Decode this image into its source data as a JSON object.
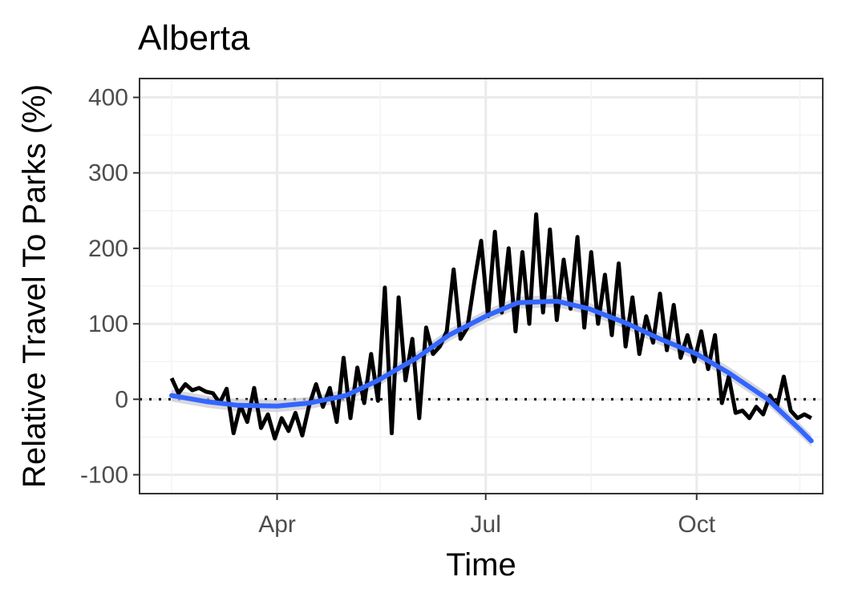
{
  "chart_data": {
    "type": "line",
    "title": "Alberta",
    "xlabel": "Time",
    "ylabel": "Relative Travel To Parks (%)",
    "x_ticks": [
      "Apr",
      "Jul",
      "Oct"
    ],
    "y_ticks": [
      "400",
      "300",
      "200",
      "100",
      "0",
      "-100"
    ],
    "ylim": [
      -125,
      425
    ],
    "xlim": [
      "2020-02-01",
      "2020-11-25"
    ],
    "grid": true,
    "reference_line": {
      "y": 0,
      "style": "dotted"
    },
    "series": [
      {
        "style": "raw-daily",
        "color": "#000000",
        "x": [
          "2020-02-15",
          "2020-02-18",
          "2020-02-21",
          "2020-02-24",
          "2020-02-27",
          "2020-03-01",
          "2020-03-04",
          "2020-03-07",
          "2020-03-10",
          "2020-03-13",
          "2020-03-16",
          "2020-03-19",
          "2020-03-22",
          "2020-03-25",
          "2020-03-28",
          "2020-03-31",
          "2020-04-03",
          "2020-04-06",
          "2020-04-09",
          "2020-04-12",
          "2020-04-15",
          "2020-04-18",
          "2020-04-21",
          "2020-04-24",
          "2020-04-27",
          "2020-04-30",
          "2020-05-03",
          "2020-05-06",
          "2020-05-09",
          "2020-05-12",
          "2020-05-15",
          "2020-05-18",
          "2020-05-21",
          "2020-05-24",
          "2020-05-27",
          "2020-05-30",
          "2020-06-02",
          "2020-06-05",
          "2020-06-08",
          "2020-06-11",
          "2020-06-14",
          "2020-06-17",
          "2020-06-20",
          "2020-06-23",
          "2020-06-26",
          "2020-06-29",
          "2020-07-02",
          "2020-07-05",
          "2020-07-08",
          "2020-07-11",
          "2020-07-14",
          "2020-07-17",
          "2020-07-20",
          "2020-07-23",
          "2020-07-26",
          "2020-07-29",
          "2020-08-01",
          "2020-08-04",
          "2020-08-07",
          "2020-08-10",
          "2020-08-13",
          "2020-08-16",
          "2020-08-19",
          "2020-08-22",
          "2020-08-25",
          "2020-08-28",
          "2020-08-31",
          "2020-09-03",
          "2020-09-06",
          "2020-09-09",
          "2020-09-12",
          "2020-09-15",
          "2020-09-18",
          "2020-09-21",
          "2020-09-24",
          "2020-09-27",
          "2020-09-30",
          "2020-10-03",
          "2020-10-06",
          "2020-10-09",
          "2020-10-12",
          "2020-10-15",
          "2020-10-18",
          "2020-10-21",
          "2020-10-24",
          "2020-10-27",
          "2020-10-30",
          "2020-11-02",
          "2020-11-05",
          "2020-11-08",
          "2020-11-11",
          "2020-11-14",
          "2020-11-17",
          "2020-11-20"
        ],
        "values": [
          28,
          8,
          20,
          12,
          15,
          10,
          8,
          -5,
          14,
          -45,
          -8,
          -30,
          15,
          -38,
          -20,
          -52,
          -25,
          -42,
          -18,
          -48,
          -8,
          20,
          -10,
          15,
          -30,
          55,
          -25,
          42,
          -5,
          60,
          -2,
          148,
          -45,
          135,
          25,
          80,
          -25,
          95,
          60,
          70,
          90,
          172,
          80,
          95,
          155,
          210,
          110,
          222,
          115,
          200,
          90,
          195,
          100,
          245,
          115,
          225,
          105,
          185,
          120,
          215,
          95,
          195,
          100,
          165,
          85,
          180,
          70,
          135,
          60,
          110,
          75,
          140,
          65,
          125,
          55,
          85,
          50,
          90,
          40,
          85,
          -5,
          30,
          -18,
          -15,
          -25,
          -10,
          -20,
          5,
          -10,
          30,
          -15,
          -25,
          -20,
          -25
        ]
      },
      {
        "style": "smoothed-trend",
        "color": "#3366ff",
        "x": [
          "2020-02-15",
          "2020-03-01",
          "2020-03-15",
          "2020-04-01",
          "2020-04-15",
          "2020-05-01",
          "2020-05-15",
          "2020-06-01",
          "2020-06-15",
          "2020-07-01",
          "2020-07-15",
          "2020-08-01",
          "2020-08-15",
          "2020-09-01",
          "2020-09-15",
          "2020-10-01",
          "2020-10-15",
          "2020-11-01",
          "2020-11-15",
          "2020-11-20"
        ],
        "values": [
          5,
          -3,
          -8,
          -9,
          -5,
          5,
          25,
          55,
          85,
          110,
          128,
          130,
          120,
          100,
          80,
          60,
          35,
          0,
          -40,
          -55
        ]
      }
    ]
  }
}
